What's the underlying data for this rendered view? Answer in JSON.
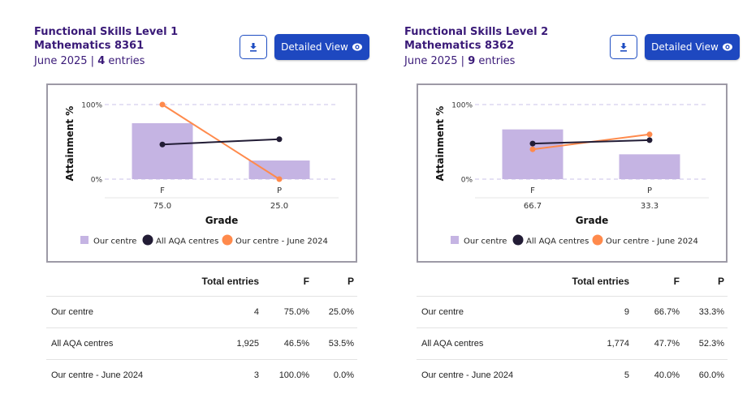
{
  "colors": {
    "title": "#3a1a78",
    "button": "#1e48c0",
    "bar": "#c5b4e3",
    "all_centres": "#221c35",
    "previous_year": "#ff8a4c",
    "grid": "#d5cfee"
  },
  "icons": {
    "download": "download-icon",
    "detailed_view": "eye-icon"
  },
  "cards": [
    {
      "title_line1": "Functional Skills Level 1",
      "title_line2": "Mathematics 8361",
      "session": "June 2025",
      "separator": "|",
      "entries_count": "4",
      "entries_label": "entries",
      "download_label": "Download",
      "detailed_view_label": "Detailed View",
      "table": {
        "headers": [
          "",
          "Total entries",
          "F",
          "P"
        ],
        "rows": [
          {
            "label": "Our centre",
            "total": "4",
            "f": "75.0%",
            "p": "25.0%"
          },
          {
            "label": "All AQA centres",
            "total": "1,925",
            "f": "46.5%",
            "p": "53.5%"
          },
          {
            "label": "Our centre - June 2024",
            "total": "3",
            "f": "100.0%",
            "p": "0.0%"
          }
        ]
      }
    },
    {
      "title_line1": "Functional Skills Level 2",
      "title_line2": "Mathematics 8362",
      "session": "June 2025",
      "separator": "|",
      "entries_count": "9",
      "entries_label": "entries",
      "download_label": "Download",
      "detailed_view_label": "Detailed View",
      "table": {
        "headers": [
          "",
          "Total entries",
          "F",
          "P"
        ],
        "rows": [
          {
            "label": "Our centre",
            "total": "9",
            "f": "66.7%",
            "p": "33.3%"
          },
          {
            "label": "All AQA centres",
            "total": "1,774",
            "f": "47.7%",
            "p": "52.3%"
          },
          {
            "label": "Our centre - June 2024",
            "total": "5",
            "f": "40.0%",
            "p": "60.0%"
          }
        ]
      }
    }
  ],
  "chart_data": [
    {
      "type": "bar",
      "title": "Functional Skills Level 1 Mathematics 8361",
      "categories": [
        "F",
        "P"
      ],
      "category_value_labels": [
        "75.0",
        "25.0"
      ],
      "xlabel": "Grade",
      "ylabel": "Attainment %",
      "ylim": [
        0,
        100
      ],
      "yticks": [
        "0%",
        "100%"
      ],
      "grid": true,
      "legend_position": "bottom",
      "series": [
        {
          "name": "Our centre",
          "type": "bar",
          "values": [
            75.0,
            25.0
          ]
        },
        {
          "name": "All AQA centres",
          "type": "line",
          "values": [
            46.5,
            53.5
          ]
        },
        {
          "name": "Our centre - June 2024",
          "type": "line",
          "values": [
            100.0,
            0.0
          ]
        }
      ]
    },
    {
      "type": "bar",
      "title": "Functional Skills Level 2 Mathematics 8362",
      "categories": [
        "F",
        "P"
      ],
      "category_value_labels": [
        "66.7",
        "33.3"
      ],
      "xlabel": "Grade",
      "ylabel": "Attainment %",
      "ylim": [
        0,
        100
      ],
      "yticks": [
        "0%",
        "100%"
      ],
      "grid": true,
      "legend_position": "bottom",
      "series": [
        {
          "name": "Our centre",
          "type": "bar",
          "values": [
            66.7,
            33.3
          ]
        },
        {
          "name": "All AQA centres",
          "type": "line",
          "values": [
            47.7,
            52.3
          ]
        },
        {
          "name": "Our centre - June 2024",
          "type": "line",
          "values": [
            40.0,
            60.0
          ]
        }
      ]
    }
  ]
}
